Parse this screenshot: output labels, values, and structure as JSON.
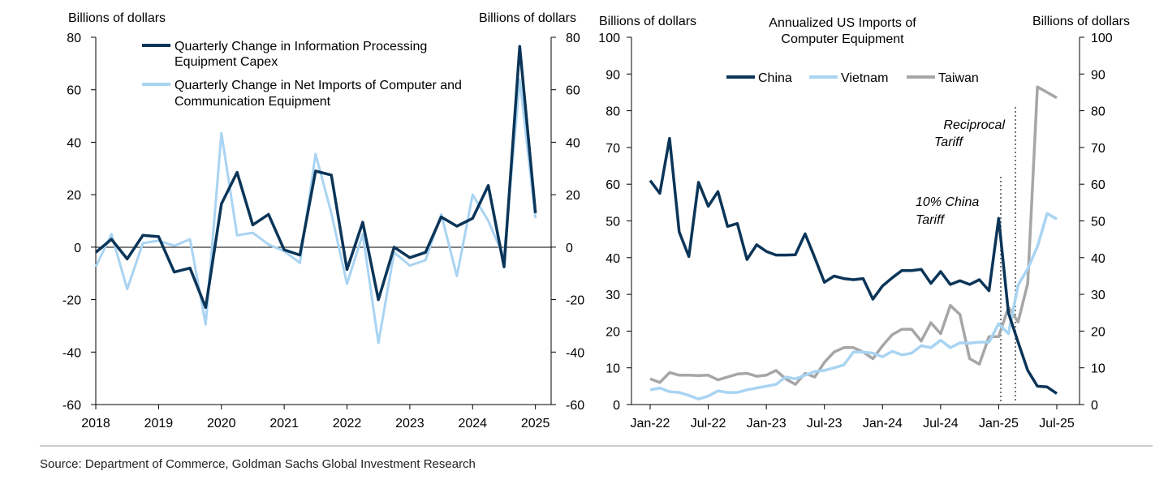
{
  "source": "Source: Department of Commerce, Goldman Sachs Global Investment Research",
  "chart_data": [
    {
      "type": "line",
      "left_axis_label": "Billions of dollars",
      "right_axis_label": "Billions of dollars",
      "ylim": [
        -60,
        80
      ],
      "yticks": [
        80,
        60,
        40,
        20,
        0,
        -20,
        -40,
        -60
      ],
      "xlim": [
        2018,
        2025.25
      ],
      "xticks": [
        "2018",
        "2019",
        "2020",
        "2021",
        "2022",
        "2023",
        "2024",
        "2025"
      ],
      "grid": false,
      "zero_line": true,
      "legend_position": "top-center",
      "series": [
        {
          "name": "Quarterly Change in Information Processing Equipment Capex",
          "legend_lines": [
            "Quarterly Change in Information Processing",
            "Equipment Capex"
          ],
          "color": "#0b3558",
          "x": [
            2018.0,
            2018.25,
            2018.5,
            2018.75,
            2019.0,
            2019.25,
            2019.5,
            2019.75,
            2020.0,
            2020.25,
            2020.5,
            2020.75,
            2021.0,
            2021.25,
            2021.5,
            2021.75,
            2022.0,
            2022.25,
            2022.5,
            2022.75,
            2023.0,
            2023.25,
            2023.5,
            2023.75,
            2024.0,
            2024.25,
            2024.5,
            2024.75,
            2025.0
          ],
          "values": [
            -2,
            3,
            -4.5,
            4.5,
            4,
            -9.5,
            -8,
            -23,
            16.5,
            28.5,
            8.5,
            12.5,
            -1,
            -3,
            29,
            27.5,
            -8.5,
            9.5,
            -20,
            0,
            -4,
            -2,
            11.5,
            8,
            11,
            23.5,
            -7.5,
            76.5,
            13
          ]
        },
        {
          "name": "Quarterly Change in Net Imports of Computer and Communication Equipment",
          "legend_lines": [
            "Quarterly Change in Net Imports of Computer and",
            "Communication Equipment"
          ],
          "color": "#a9d4f2",
          "x": [
            2018.0,
            2018.25,
            2018.5,
            2018.75,
            2019.0,
            2019.25,
            2019.5,
            2019.75,
            2020.0,
            2020.25,
            2020.5,
            2020.75,
            2021.0,
            2021.25,
            2021.5,
            2021.75,
            2022.0,
            2022.25,
            2022.5,
            2022.75,
            2023.0,
            2023.25,
            2023.5,
            2023.75,
            2024.0,
            2024.25,
            2024.5,
            2024.75,
            2025.0
          ],
          "values": [
            -7.5,
            5,
            -16,
            1.5,
            2.5,
            0.5,
            3,
            -29.5,
            43.5,
            4.5,
            5.5,
            1,
            -1.5,
            -6,
            35.5,
            13,
            -14,
            5,
            -36.5,
            -2,
            -7,
            -5,
            12.5,
            -11,
            20,
            10,
            -4,
            64,
            11
          ]
        }
      ]
    },
    {
      "type": "line",
      "title_lines": [
        "Annualized US Imports of",
        "Computer Equipment"
      ],
      "left_axis_label": "Billions of dollars",
      "right_axis_label": "Billions of dollars",
      "ylim": [
        0,
        100
      ],
      "yticks": [
        100,
        90,
        80,
        70,
        60,
        50,
        40,
        30,
        20,
        10,
        0
      ],
      "xticks": [
        "Jan-22",
        "Jul-22",
        "Jan-23",
        "Jul-23",
        "Jan-24",
        "Jul-24",
        "Jan-25",
        "Jul-25"
      ],
      "x_note": "x index = months since Jan-22 (0 = Jan-22)",
      "grid": false,
      "legend_position": "top",
      "annotations": [
        {
          "lines": [
            "Reciprocal",
            "Tariff"
          ],
          "month": 39.6
        },
        {
          "lines": [
            "10% China",
            "Tariff"
          ],
          "month": 38.3
        }
      ],
      "series": [
        {
          "name": "China",
          "color": "#0b3558",
          "values": [
            61,
            57.5,
            72.5,
            47,
            40.3,
            60.5,
            54,
            58,
            48.5,
            49.3,
            39.5,
            43.5,
            41.7,
            40.7,
            40.7,
            40.8,
            46.5,
            40,
            33.3,
            35,
            34.3,
            34,
            34.3,
            28.7,
            32.3,
            34.5,
            36.5,
            36.5,
            36.8,
            33,
            36.2,
            32.7,
            33.7,
            32.7,
            34,
            31,
            50.7,
            25,
            17,
            9.3,
            5,
            4.8,
            3
          ]
        },
        {
          "name": "Vietnam",
          "color": "#a9d4f2",
          "values": [
            4,
            4.5,
            3.5,
            3.3,
            2.5,
            1.5,
            2.3,
            3.7,
            3.3,
            3.3,
            4,
            4.5,
            5,
            5.5,
            7.5,
            7,
            8,
            9,
            9.3,
            10,
            10.8,
            14.3,
            14.3,
            14,
            13,
            14.5,
            13.5,
            14,
            16,
            15.5,
            17.5,
            15.5,
            16.8,
            16.7,
            17,
            17,
            22,
            19.3,
            32.5,
            37,
            43,
            52,
            50.5
          ]
        },
        {
          "name": "Taiwan",
          "color": "#a6a6a6",
          "values": [
            7,
            6,
            8.7,
            8,
            8,
            7.9,
            8,
            6.7,
            7.5,
            8.3,
            8.5,
            7.7,
            8,
            9.3,
            7,
            5.5,
            8.5,
            7.5,
            11.5,
            14.3,
            15.5,
            15.5,
            14.3,
            12.5,
            16,
            19,
            20.5,
            20.5,
            17.3,
            22.3,
            19.3,
            27,
            24.5,
            12.5,
            11,
            18.5,
            18.5,
            26.5,
            22.5,
            33,
            86.5,
            85,
            83.5
          ]
        }
      ]
    }
  ]
}
